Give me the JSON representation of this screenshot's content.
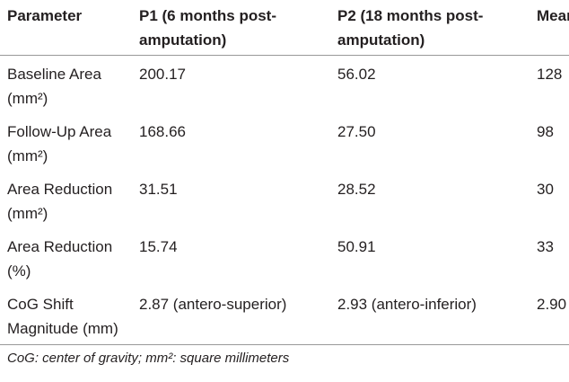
{
  "table": {
    "header": [
      "Parameter",
      "P1 (6 months post-amputation)",
      "P2 (18 months post-amputation)",
      "Mean"
    ],
    "rows": [
      [
        "Baseline Area (mm²)",
        "200.17",
        "56.02",
        "128"
      ],
      [
        "Follow-Up Area (mm²)",
        "168.66",
        "27.50",
        "98"
      ],
      [
        "Area Reduction (mm²)",
        "31.51",
        "28.52",
        "30"
      ],
      [
        "Area Reduction (%)",
        "15.74",
        "50.91",
        "33"
      ],
      [
        "CoG Shift Magnitude (mm)",
        "2.87 (antero-superior)",
        "2.93 (antero-inferior)",
        "2.90"
      ]
    ],
    "footnote": "CoG: center of gravity; mm²: square millimeters"
  }
}
